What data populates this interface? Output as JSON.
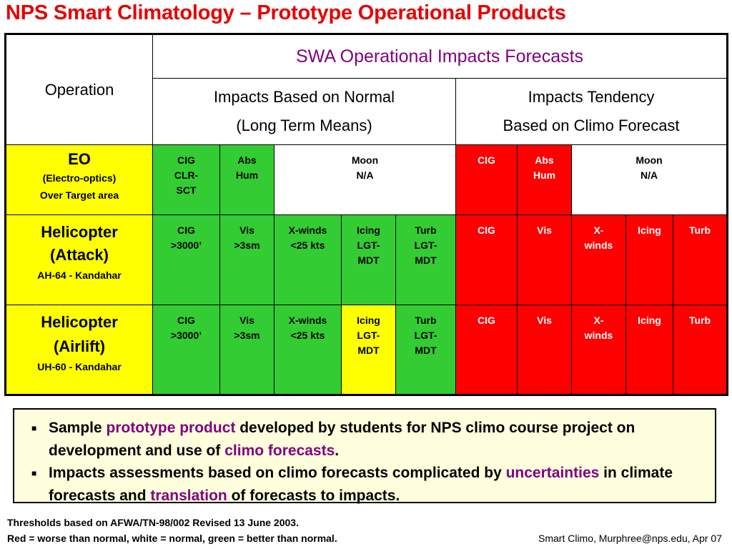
{
  "title": "NPS Smart Climatology – Prototype Operational Products",
  "header": {
    "operation": "Operation",
    "swa": "SWA Operational Impacts Forecasts",
    "normal_line1": "Impacts Based on Normal",
    "normal_line2": "(Long Term Means)",
    "tendency_line1": "Impacts Tendency",
    "tendency_line2": "Based on Climo Forecast"
  },
  "rows": [
    {
      "name": "EO",
      "sub1": "(Electro-optics)",
      "sub2": "Over Target area",
      "normal": [
        {
          "text": "CIG\nCLR-\nSCT",
          "color": "#33cc33"
        },
        {
          "text": "Abs\nHum",
          "color": "#33cc33"
        },
        {
          "text": "Moon\nN/A",
          "color": "#ffffff"
        }
      ],
      "tendency": [
        {
          "text": "CIG",
          "color": "#ff0000"
        },
        {
          "text": "Abs\nHum",
          "color": "#ff0000"
        },
        {
          "text": "Moon\nN/A",
          "color": "#ffffff"
        }
      ]
    },
    {
      "name": "Helicopter",
      "name2": "(Attack)",
      "sub1": "AH-64 - Kandahar",
      "normal": [
        {
          "text": "CIG\n>3000’",
          "color": "#33cc33"
        },
        {
          "text": "Vis\n>3sm",
          "color": "#33cc33"
        },
        {
          "text": "X-winds\n<25 kts",
          "color": "#33cc33"
        },
        {
          "text": "Icing\nLGT-\nMDT",
          "color": "#33cc33"
        },
        {
          "text": "Turb\nLGT-\nMDT",
          "color": "#33cc33"
        }
      ],
      "tendency": [
        {
          "text": "CIG",
          "color": "#ff0000"
        },
        {
          "text": "Vis",
          "color": "#ff0000"
        },
        {
          "text": "X-\nwinds",
          "color": "#ff0000"
        },
        {
          "text": "Icing",
          "color": "#ff0000"
        },
        {
          "text": "Turb",
          "color": "#ff0000"
        }
      ]
    },
    {
      "name": "Helicopter",
      "name2": "(Airlift)",
      "sub1": "UH-60 - Kandahar",
      "normal": [
        {
          "text": "CIG\n>3000’",
          "color": "#33cc33"
        },
        {
          "text": "Vis\n>3sm",
          "color": "#33cc33"
        },
        {
          "text": "X-winds\n<25 kts",
          "color": "#33cc33"
        },
        {
          "text": "Icing\nLGT-\nMDT",
          "color": "#ffff00"
        },
        {
          "text": "Turb\nLGT-\nMDT",
          "color": "#33cc33"
        }
      ],
      "tendency": [
        {
          "text": "CIG",
          "color": "#ff0000"
        },
        {
          "text": "Vis",
          "color": "#ff0000"
        },
        {
          "text": "X-\nwinds",
          "color": "#ff0000"
        },
        {
          "text": "Icing",
          "color": "#ff0000"
        },
        {
          "text": "Turb",
          "color": "#ff0000"
        }
      ]
    }
  ],
  "notes": {
    "n1_a": "Sample ",
    "n1_b": "prototype product",
    "n1_c": " developed by students for NPS climo course project on development and use of ",
    "n1_d": "climo forecasts",
    "n1_e": ".",
    "n2_a": "Impacts assessments based on climo forecasts complicated by ",
    "n2_b": "uncertainties",
    "n2_c": " in climate forecasts and ",
    "n2_d": "translation",
    "n2_e": " of forecasts to impacts."
  },
  "footer": {
    "line1": "Thresholds based on AFWA/TN-98/002 Revised 13 June 2003.",
    "line2": "Red = worse than normal, white = normal, green = better than normal.",
    "credit": "Smart Climo, Murphree@nps.edu, Apr 07"
  },
  "colors": {
    "title": "#e60000",
    "accent": "#800080",
    "better": "#33cc33",
    "worse": "#ff0000",
    "caution": "#ffff00",
    "operation": "#ffff00"
  }
}
